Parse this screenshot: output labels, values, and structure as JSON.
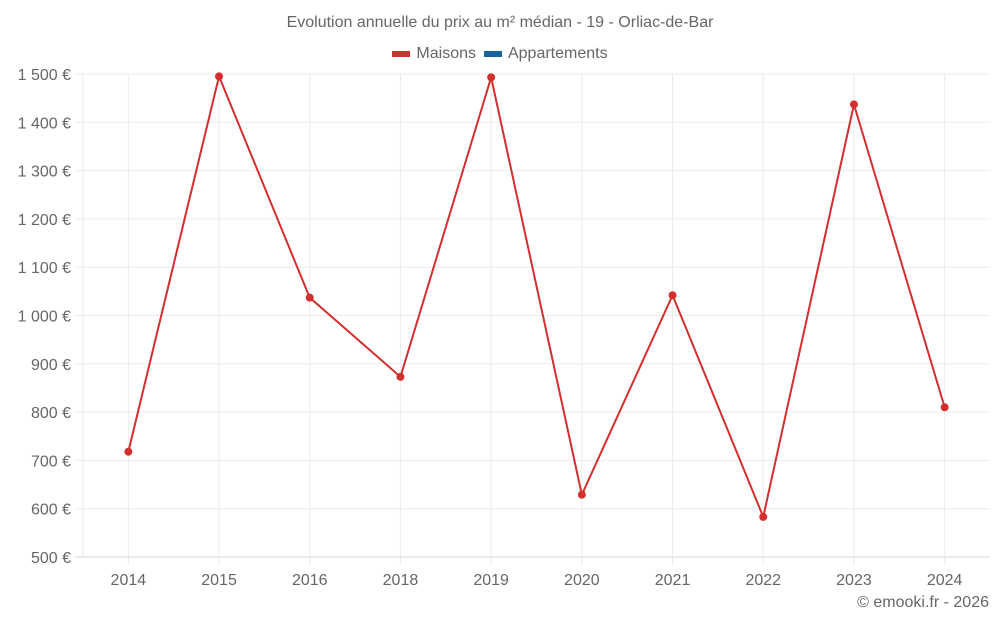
{
  "header": {
    "title": "Evolution annuelle du prix au m² médian - 19 - Orliac-de-Bar"
  },
  "legend": [
    {
      "label": "Maisons",
      "color": "#d32f2f"
    },
    {
      "label": "Appartements",
      "color": "#1565a0"
    }
  ],
  "footer": {
    "credit": "© emooki.fr - 2026"
  },
  "chart_data": {
    "type": "line",
    "title": "Evolution annuelle du prix au m² médian - 19 - Orliac-de-Bar",
    "xlabel": "",
    "ylabel": "",
    "categories": [
      "2014",
      "2015",
      "2016",
      "2018",
      "2019",
      "2020",
      "2021",
      "2022",
      "2023",
      "2024"
    ],
    "series": [
      {
        "name": "Maisons",
        "color": "#d32f2f",
        "values": [
          718,
          1495,
          1037,
          873,
          1493,
          629,
          1042,
          583,
          1437,
          810
        ]
      },
      {
        "name": "Appartements",
        "color": "#1565a0",
        "values": []
      }
    ],
    "ylim": [
      500,
      1500
    ],
    "yticks": [
      500,
      600,
      700,
      800,
      900,
      1000,
      1100,
      1200,
      1300,
      1400,
      1500
    ],
    "ytick_labels": [
      "500 €",
      "600 €",
      "700 €",
      "800 €",
      "900 €",
      "1 000 €",
      "1 100 €",
      "1 200 €",
      "1 300 €",
      "1 400 €",
      "1 500 €"
    ],
    "grid": true,
    "legend_position": "top"
  }
}
